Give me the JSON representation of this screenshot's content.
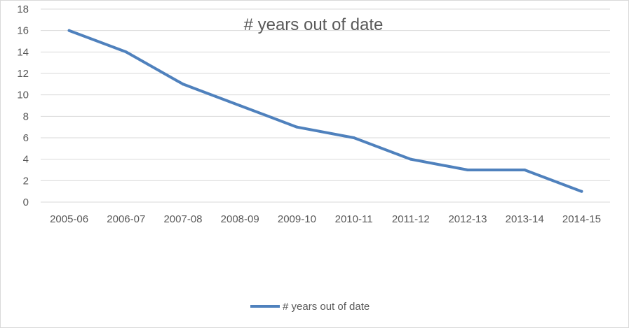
{
  "chart_data": {
    "type": "line",
    "title": "# years out of date",
    "categories": [
      "2005-06",
      "2006-07",
      "2007-08",
      "2008-09",
      "2009-10",
      "2010-11",
      "2011-12",
      "2012-13",
      "2013-14",
      "2014-15"
    ],
    "series": [
      {
        "name": "# years out of date",
        "values": [
          16,
          14,
          11,
          9,
          7,
          6,
          4,
          3,
          3,
          1
        ],
        "color": "#4F81BD"
      }
    ],
    "ylim": [
      0,
      18
    ],
    "yticks": [
      0,
      2,
      4,
      6,
      8,
      10,
      12,
      14,
      16,
      18
    ],
    "grid": true,
    "legend_position": "bottom",
    "colors": {
      "gridline": "#d9d9d9",
      "text": "#595959"
    }
  }
}
